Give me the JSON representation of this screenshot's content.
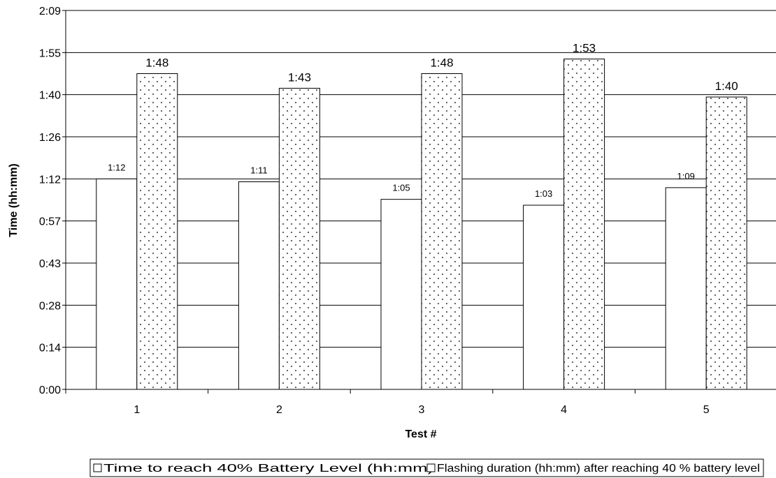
{
  "chart_data": {
    "type": "bar",
    "xlabel": "Test #",
    "ylabel": "Time (hh:mm)",
    "categories": [
      "1",
      "2",
      "3",
      "4",
      "5"
    ],
    "y_ticks": [
      "0:00",
      "0:14",
      "0:28",
      "0:43",
      "0:57",
      "1:12",
      "1:26",
      "1:40",
      "1:55",
      "2:09"
    ],
    "ylim_minutes": [
      0,
      129.6
    ],
    "grid": true,
    "legend_position": "bottom",
    "series": [
      {
        "name": "Time to reach 40% Battery Level (hh:mm)",
        "values_minutes": [
          72,
          71,
          65,
          63,
          69
        ],
        "labels": [
          "1:12",
          "1:11",
          "1:05",
          "1:03",
          "1:09"
        ],
        "fill": "plain"
      },
      {
        "name": "Flashing duration (hh:mm) after reaching 40 % battery level",
        "values_minutes": [
          108,
          103,
          108,
          113,
          100
        ],
        "labels": [
          "1:48",
          "1:43",
          "1:48",
          "1:53",
          "1:40"
        ],
        "fill": "dotted"
      }
    ]
  }
}
